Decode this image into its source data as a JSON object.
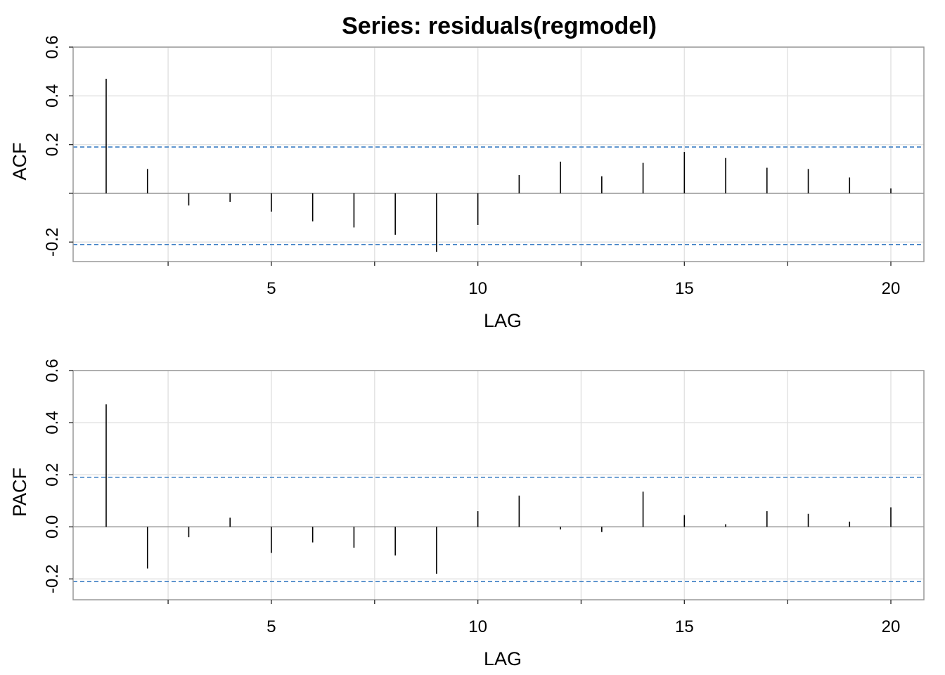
{
  "title": "Series:  residuals(regmodel)",
  "colors": {
    "spike": "#000000",
    "grid": "#e3e3e3",
    "frame": "#999999",
    "zero_line": "#999999",
    "confidence": "#3a7dc4"
  },
  "chart_data": [
    {
      "type": "bar",
      "title": "Series:  residuals(regmodel)",
      "xlabel": "LAG",
      "ylabel": "ACF",
      "xlim": [
        0.2,
        20.8
      ],
      "ylim": [
        -0.28,
        0.6
      ],
      "x_ticks": [
        5,
        10,
        15,
        20
      ],
      "x_tick_labels": [
        "5",
        "10",
        "15",
        "20"
      ],
      "x_grid": [
        2.5,
        5,
        7.5,
        10,
        12.5,
        15,
        17.5,
        20
      ],
      "y_ticks": [
        -0.2,
        0,
        0.2,
        0.4,
        0.6
      ],
      "y_tick_labels": [
        "-0.2",
        "",
        "0.2",
        "0.4",
        "0.6"
      ],
      "grid": true,
      "confidence_bounds": [
        0.19,
        -0.21
      ],
      "x": [
        1,
        2,
        3,
        4,
        5,
        6,
        7,
        8,
        9,
        10,
        11,
        12,
        13,
        14,
        15,
        16,
        17,
        18,
        19,
        20
      ],
      "values": [
        0.47,
        0.1,
        -0.05,
        -0.035,
        -0.075,
        -0.115,
        -0.14,
        -0.17,
        -0.24,
        -0.13,
        0.075,
        0.13,
        0.07,
        0.125,
        0.17,
        0.145,
        0.105,
        0.1,
        0.065,
        0.02
      ]
    },
    {
      "type": "bar",
      "xlabel": "LAG",
      "ylabel": "PACF",
      "xlim": [
        0.2,
        20.8
      ],
      "ylim": [
        -0.28,
        0.6
      ],
      "x_ticks": [
        5,
        10,
        15,
        20
      ],
      "x_tick_labels": [
        "5",
        "10",
        "15",
        "20"
      ],
      "x_grid": [
        2.5,
        5,
        7.5,
        10,
        12.5,
        15,
        17.5,
        20
      ],
      "y_ticks": [
        -0.2,
        0,
        0.2,
        0.4,
        0.6
      ],
      "y_tick_labels": [
        "-0.2",
        "0.0",
        "0.2",
        "0.4",
        "0.6"
      ],
      "grid": true,
      "confidence_bounds": [
        0.19,
        -0.21
      ],
      "x": [
        1,
        2,
        3,
        4,
        5,
        6,
        7,
        8,
        9,
        10,
        11,
        12,
        13,
        14,
        15,
        16,
        17,
        18,
        19,
        20
      ],
      "values": [
        0.47,
        -0.16,
        -0.04,
        0.035,
        -0.1,
        -0.06,
        -0.08,
        -0.11,
        -0.18,
        0.06,
        0.12,
        -0.01,
        -0.02,
        0.135,
        0.045,
        0.01,
        0.06,
        0.05,
        0.02,
        0.075
      ]
    }
  ]
}
